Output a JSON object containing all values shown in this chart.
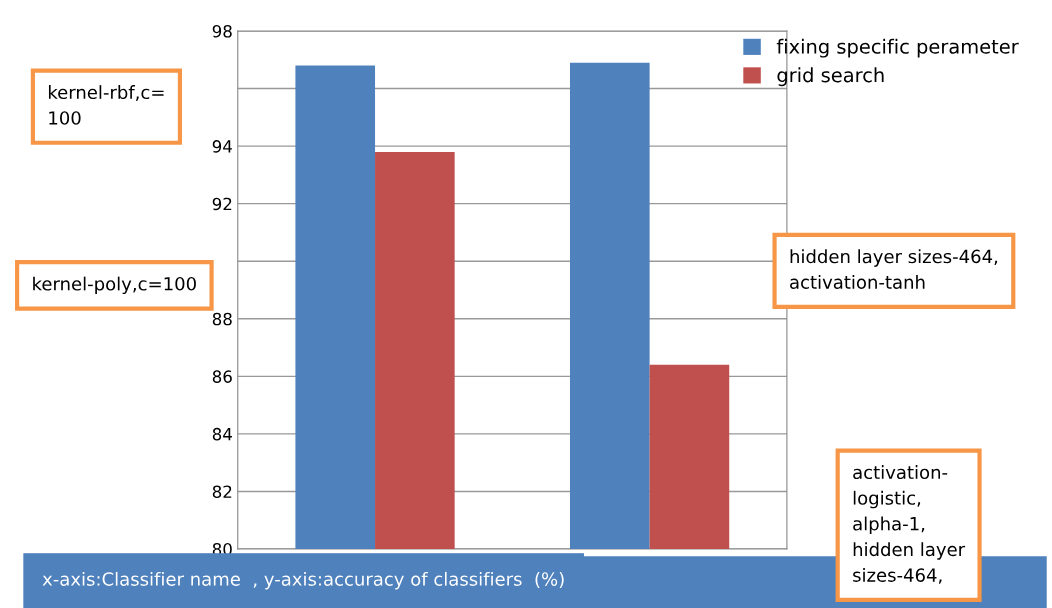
{
  "chart_data": {
    "type": "bar",
    "categories": [
      null,
      null
    ],
    "series": [
      {
        "name": "fixing specific perameter",
        "color": "#4f81bd",
        "values": [
          96.8,
          96.9
        ]
      },
      {
        "name": "grid search",
        "color": "#c0504d",
        "values": [
          93.8,
          86.4
        ]
      }
    ],
    "ylim": [
      80,
      98
    ],
    "yticks": [
      80,
      82,
      84,
      86,
      88,
      {
        "value": 90,
        "label": null
      },
      92,
      94,
      {
        "value": 96,
        "label": null
      },
      98
    ],
    "grid": "y",
    "legend": "top right",
    "annotations": [
      "kernel-rbf,c=\n100",
      "kernel-poly,c=100",
      "hidden layer sizes-464,\nactivation-tanh",
      "activation-\nlogistic,\nalpha-1,\nhidden layer\nsizes-464,",
      "x-axis:Classifier name  , y-axis:accuracy of classifiers  (%)"
    ]
  }
}
